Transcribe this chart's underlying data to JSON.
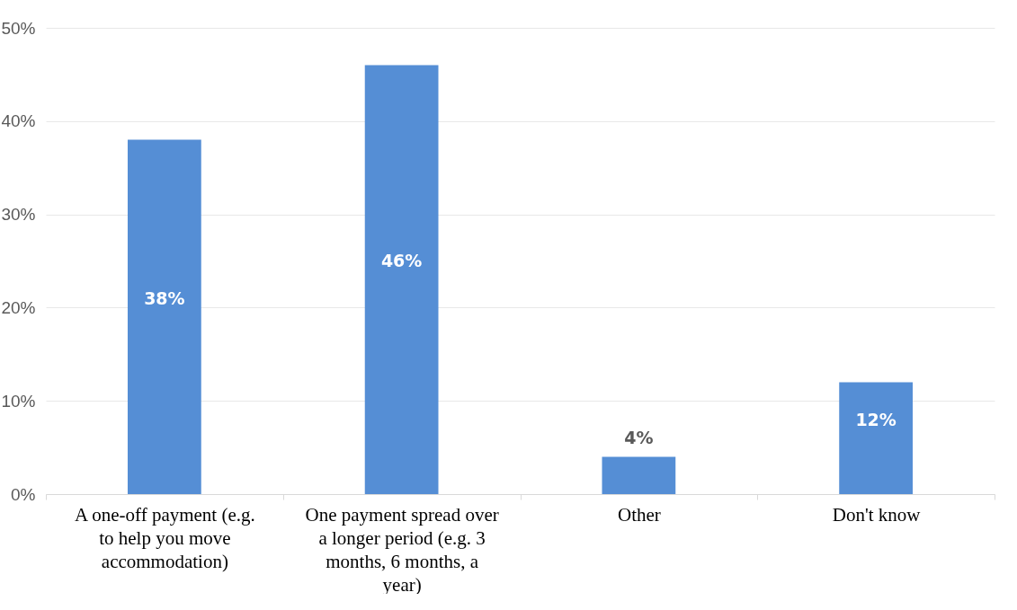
{
  "chart_data": {
    "type": "bar",
    "categories": [
      "A one-off payment (e.g. to help you move accommodation)",
      "One payment spread over a longer period (e.g. 3 months, 6 months, a year)",
      "Other",
      "Don't know"
    ],
    "values": [
      38,
      46,
      4,
      12
    ],
    "value_labels": [
      "38%",
      "46%",
      "4%",
      "12%"
    ],
    "color": "#558ed5",
    "ylim": [
      0,
      50
    ],
    "yticks": [
      {
        "value": 0,
        "label": "0%"
      },
      {
        "value": 10,
        "label": "10%"
      },
      {
        "value": 20,
        "label": "20%"
      },
      {
        "value": 30,
        "label": "30%"
      },
      {
        "value": 40,
        "label": "40%"
      },
      {
        "value": 50,
        "label": "50%"
      }
    ],
    "grid": "y"
  }
}
